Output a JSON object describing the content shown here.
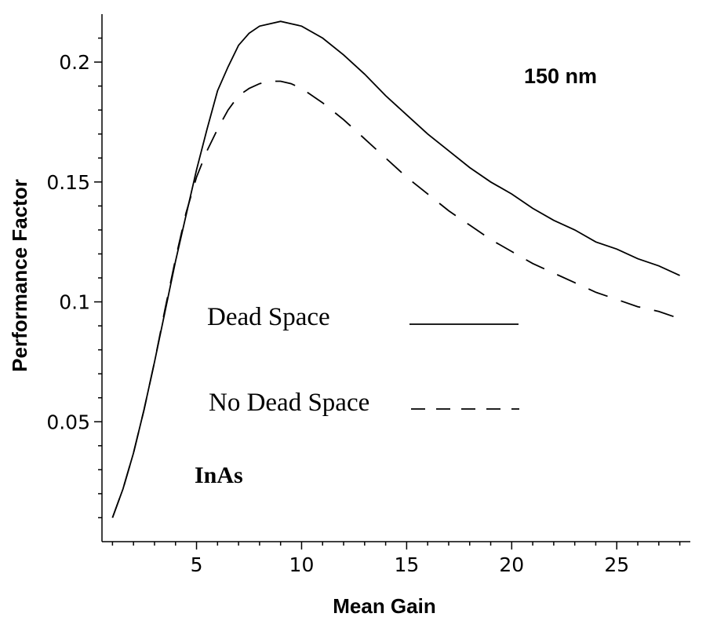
{
  "chart_data": {
    "type": "line",
    "title": "",
    "xlabel": "Mean Gain",
    "ylabel": "Performance Factor",
    "xlim": [
      0.5,
      28.5
    ],
    "ylim": [
      0.0,
      0.22
    ],
    "x_ticks": [
      5,
      10,
      15,
      20,
      25
    ],
    "x_tick_labels": [
      "5",
      "10",
      "15",
      "20",
      "25"
    ],
    "y_ticks": [
      0.05,
      0.1,
      0.15,
      0.2
    ],
    "y_tick_labels": [
      "0.05",
      "0.1",
      "0.15",
      "0.2"
    ],
    "grid": false,
    "series": [
      {
        "name": "Dead Space",
        "style": "solid",
        "x": [
          1,
          1.5,
          2,
          2.5,
          3,
          3.5,
          4,
          4.5,
          5,
          5.5,
          6,
          6.5,
          7,
          7.5,
          8,
          8.5,
          9,
          9.5,
          10,
          11,
          12,
          13,
          14,
          15,
          16,
          17,
          18,
          19,
          20,
          21,
          22,
          23,
          24,
          25,
          26,
          27,
          28
        ],
        "values": [
          0.01,
          0.022,
          0.037,
          0.055,
          0.075,
          0.096,
          0.117,
          0.136,
          0.155,
          0.172,
          0.188,
          0.198,
          0.207,
          0.212,
          0.215,
          0.216,
          0.217,
          0.216,
          0.215,
          0.21,
          0.203,
          0.195,
          0.186,
          0.178,
          0.17,
          0.163,
          0.156,
          0.15,
          0.145,
          0.139,
          0.134,
          0.13,
          0.125,
          0.122,
          0.118,
          0.115,
          0.111
        ]
      },
      {
        "name": "No Dead Space",
        "style": "dashed",
        "x": [
          1,
          1.5,
          2,
          2.5,
          3,
          3.5,
          4,
          4.5,
          5,
          5.5,
          6,
          6.5,
          7,
          7.5,
          8,
          8.5,
          9,
          9.5,
          10,
          11,
          12,
          13,
          14,
          15,
          16,
          17,
          18,
          19,
          20,
          21,
          22,
          23,
          24,
          25,
          26,
          27,
          28
        ],
        "values": [
          0.01,
          0.022,
          0.037,
          0.055,
          0.075,
          0.097,
          0.118,
          0.137,
          0.152,
          0.163,
          0.172,
          0.18,
          0.186,
          0.189,
          0.191,
          0.192,
          0.192,
          0.191,
          0.189,
          0.183,
          0.176,
          0.168,
          0.16,
          0.152,
          0.145,
          0.138,
          0.132,
          0.126,
          0.121,
          0.116,
          0.112,
          0.108,
          0.104,
          0.101,
          0.098,
          0.096,
          0.093
        ]
      }
    ],
    "legend_position": "center",
    "annotations": [
      "150 nm",
      "InAs"
    ]
  }
}
